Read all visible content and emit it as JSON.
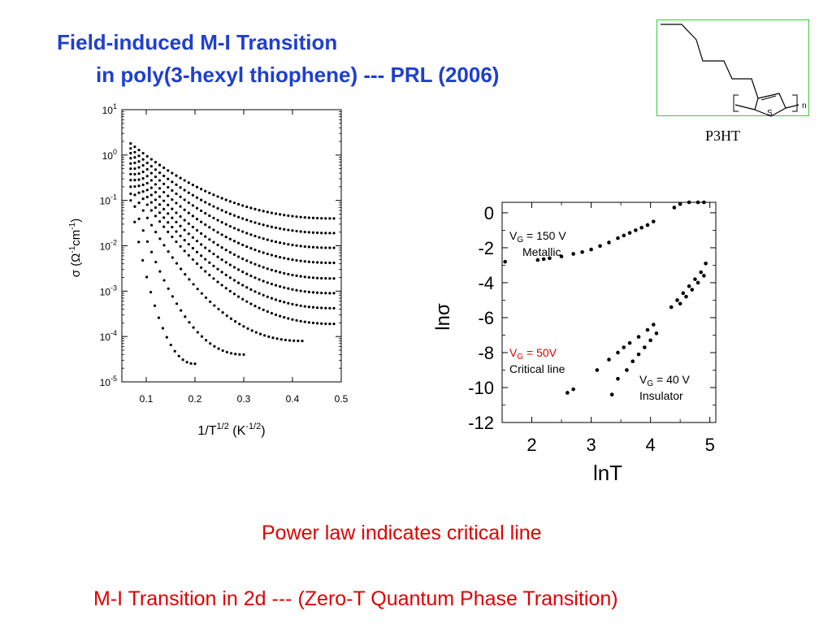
{
  "slide": {
    "title_line1": "Field-induced M-I Transition",
    "title_line2": "in poly(3-hexyl thiophene) --- PRL (2006)",
    "caption1": "Power law indicates critical line",
    "caption2": "M-I Transition in 2d --- (Zero-T Quantum Phase Transition)"
  },
  "molecule": {
    "label": "P3HT",
    "atom_s": "S",
    "subscript_n": "n",
    "outline_color": "#33cc33"
  },
  "colors": {
    "title": "#1f3fcf",
    "caption": "#e00000",
    "annotation_red": "#e00000",
    "points": "#000000"
  },
  "chart_data": [
    {
      "type": "scatter",
      "title": "",
      "xlabel": "1/T^1/2 (K^-1/2)",
      "ylabel": "σ (Ω^-1 cm^-1)",
      "y_scale": "log",
      "xlim": [
        0.05,
        0.5
      ],
      "ylim": [
        1e-05,
        10
      ],
      "x_ticks": [
        "0.1",
        "0.2",
        "0.3",
        "0.4",
        "0.5"
      ],
      "y_ticks": [
        {
          "base": "10",
          "exp": "1"
        },
        {
          "base": "10",
          "exp": "0"
        },
        {
          "base": "10",
          "exp": "-1"
        },
        {
          "base": "10",
          "exp": "-2"
        },
        {
          "base": "10",
          "exp": "-3"
        },
        {
          "base": "10",
          "exp": "-4"
        },
        {
          "base": "10",
          "exp": "-5"
        }
      ],
      "series": [
        {
          "x_end": 0.485,
          "y_start": 1.8,
          "y_end": 0.04
        },
        {
          "x_end": 0.485,
          "y_start": 1.4,
          "y_end": 0.019
        },
        {
          "x_end": 0.485,
          "y_start": 1.1,
          "y_end": 0.009
        },
        {
          "x_end": 0.485,
          "y_start": 0.85,
          "y_end": 0.0042
        },
        {
          "x_end": 0.485,
          "y_start": 0.65,
          "y_end": 0.0019
        },
        {
          "x_end": 0.485,
          "y_start": 0.5,
          "y_end": 0.0009
        },
        {
          "x_end": 0.485,
          "y_start": 0.38,
          "y_end": 0.00042
        },
        {
          "x_end": 0.485,
          "y_start": 0.28,
          "y_end": 0.00019
        },
        {
          "x_end": 0.42,
          "y_start": 0.2,
          "y_end": 8e-05
        },
        {
          "x_end": 0.3,
          "y_start": 0.14,
          "y_end": 4e-05
        },
        {
          "x_end": 0.2,
          "y_start": 0.1,
          "y_end": 2.5e-05
        }
      ]
    },
    {
      "type": "scatter",
      "title": "",
      "xlabel": "lnT",
      "ylabel": "lnσ",
      "xlim": [
        1.5,
        5.1
      ],
      "ylim": [
        -12,
        0.6
      ],
      "x_ticks": [
        "2",
        "3",
        "4",
        "5"
      ],
      "y_ticks": [
        "0",
        "-2",
        "-4",
        "-6",
        "-8",
        "-10",
        "-12"
      ],
      "annotations": [
        {
          "lines": [
            {
              "main": "V",
              "sub": "G",
              "rest": " = 150 V"
            },
            {
              "main": "Metallic"
            }
          ],
          "color": "#000000"
        },
        {
          "lines": [
            {
              "main": "V",
              "sub": "G",
              "rest": " = 50V"
            },
            {
              "main": "Critical line"
            }
          ],
          "color": "#e00000"
        },
        {
          "lines": [
            {
              "main": "V",
              "sub": "G",
              "rest": " = 40 V"
            },
            {
              "main": "Insulator"
            }
          ],
          "color": "#000000"
        }
      ],
      "series": [
        {
          "name": "V_G = 150 V",
          "x": [
            1.55,
            2.1,
            2.2,
            2.3,
            2.5,
            2.7,
            2.85,
            3.0,
            3.15,
            3.3,
            3.45,
            3.55,
            3.65,
            3.75,
            3.85,
            3.95,
            4.05,
            4.4,
            4.5,
            4.65,
            4.8,
            4.9
          ],
          "y": [
            -2.8,
            -2.7,
            -2.65,
            -2.6,
            -2.5,
            -2.35,
            -2.25,
            -2.1,
            -1.9,
            -1.7,
            -1.45,
            -1.3,
            -1.15,
            -1.0,
            -0.85,
            -0.7,
            -0.5,
            0.3,
            0.5,
            0.7,
            0.95,
            1.1
          ]
        },
        {
          "name": "V_G = 50V",
          "x": [
            2.6,
            2.7,
            3.1,
            3.3,
            3.45,
            3.55,
            3.65,
            3.8,
            3.95,
            4.05,
            4.35,
            4.45,
            4.55,
            4.65,
            4.75,
            4.85,
            4.93
          ],
          "y": [
            -10.3,
            -10.1,
            -9.0,
            -8.4,
            -8.0,
            -7.7,
            -7.45,
            -7.1,
            -6.7,
            -6.4,
            -5.4,
            -5.0,
            -4.6,
            -4.2,
            -3.8,
            -3.4,
            -2.9
          ]
        },
        {
          "name": "V_G = 40 V",
          "x": [
            3.35,
            3.45,
            3.6,
            3.7,
            3.8,
            3.9,
            4.0,
            4.1,
            4.5,
            4.6,
            4.7,
            4.8,
            4.9
          ],
          "y": [
            -10.4,
            -9.5,
            -9.0,
            -8.5,
            -8.1,
            -7.7,
            -7.3,
            -6.9,
            -5.2,
            -4.8,
            -4.4,
            -4.0,
            -3.6
          ]
        }
      ]
    }
  ]
}
